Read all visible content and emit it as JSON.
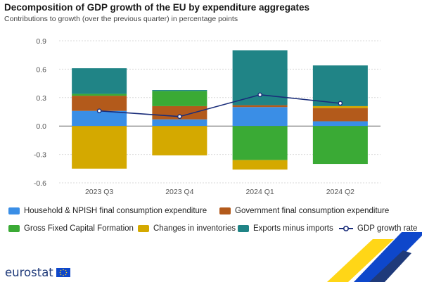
{
  "header": {
    "title": "Decomposition of GDP growth of the EU by expenditure aggregates",
    "subtitle": "Contributions to growth (over the previous quarter) in percentage points"
  },
  "chart_data": {
    "type": "bar",
    "stacked": true,
    "categories": [
      "2023 Q3",
      "2023 Q4",
      "2024 Q1",
      "2024 Q2"
    ],
    "y_ticks": [
      "0.9",
      "0.6",
      "0.3",
      "0.0",
      "-0.3",
      "-0.6"
    ],
    "ylim": [
      -0.6,
      0.9
    ],
    "grid": true,
    "legend_position": "bottom",
    "series": [
      {
        "name": "Household & NPISH final consumption expenditure",
        "color": "#3a8ee6",
        "values": [
          0.16,
          0.07,
          0.2,
          0.05
        ]
      },
      {
        "name": "Government final consumption expenditure",
        "color": "#b35a1b",
        "values": [
          0.16,
          0.14,
          0.02,
          0.14
        ]
      },
      {
        "name": "Gross Fixed Capital Formation",
        "color": "#3aaa35",
        "values": [
          0.02,
          0.16,
          -0.36,
          -0.4
        ]
      },
      {
        "name": "Changes in inventories",
        "color": "#d4a900",
        "values": [
          -0.45,
          -0.31,
          -0.1,
          0.02
        ]
      },
      {
        "name": "Exports minus imports",
        "color": "#208486",
        "values": [
          0.27,
          0.01,
          0.58,
          0.43
        ]
      }
    ],
    "line_series": {
      "name": "GDP growth rate",
      "color": "#1a2d7a",
      "values": [
        0.16,
        0.1,
        0.33,
        0.24
      ]
    }
  },
  "legend": {
    "items": [
      {
        "label": "Household & NPISH final consumption expenditure",
        "color": "#3a8ee6"
      },
      {
        "label": "Government final consumption expenditure",
        "color": "#b35a1b"
      },
      {
        "label": "Gross Fixed Capital Formation",
        "color": "#3aaa35"
      },
      {
        "label": "Changes in inventories",
        "color": "#d4a900"
      },
      {
        "label": "Exports minus imports",
        "color": "#208486"
      },
      {
        "label": "GDP growth rate",
        "color": "#1a2d7a"
      }
    ]
  },
  "footer": {
    "brand": "eurostat"
  }
}
